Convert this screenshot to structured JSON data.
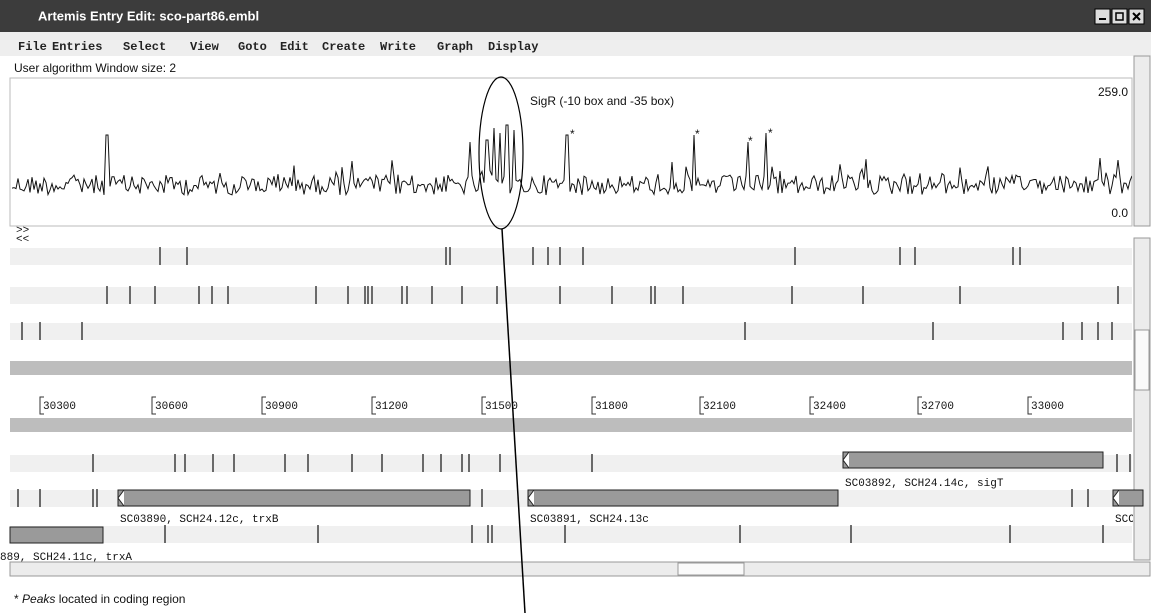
{
  "window": {
    "title": "Artemis Entry Edit: sco-part86.embl"
  },
  "menu": [
    "File",
    "Entries",
    "Select",
    "View",
    "Goto",
    "Edit",
    "Create",
    "Write",
    "Graph",
    "Display"
  ],
  "graph": {
    "header": "User algorithm   Window size: 2",
    "max_label": "259.0",
    "min_label": "0.0",
    "annotation": "SigR (-10 box and -35 box)",
    "peak_marker": "*"
  },
  "ruler": [
    30300,
    30600,
    30900,
    31200,
    31500,
    31800,
    32100,
    32400,
    32700,
    33000
  ],
  "features": [
    "SC03890, SCH24.12c, trxB",
    "SC03891, SCH24.13c",
    "SC03892, SCH24.14c, sigT",
    "SCO",
    "889, SCH24.11c, trxA"
  ],
  "scroll_arrows": [
    ">>",
    "<<"
  ],
  "footnote": {
    "marker": "*",
    "emphasis": "Peaks",
    "rest": "located in coding region"
  }
}
